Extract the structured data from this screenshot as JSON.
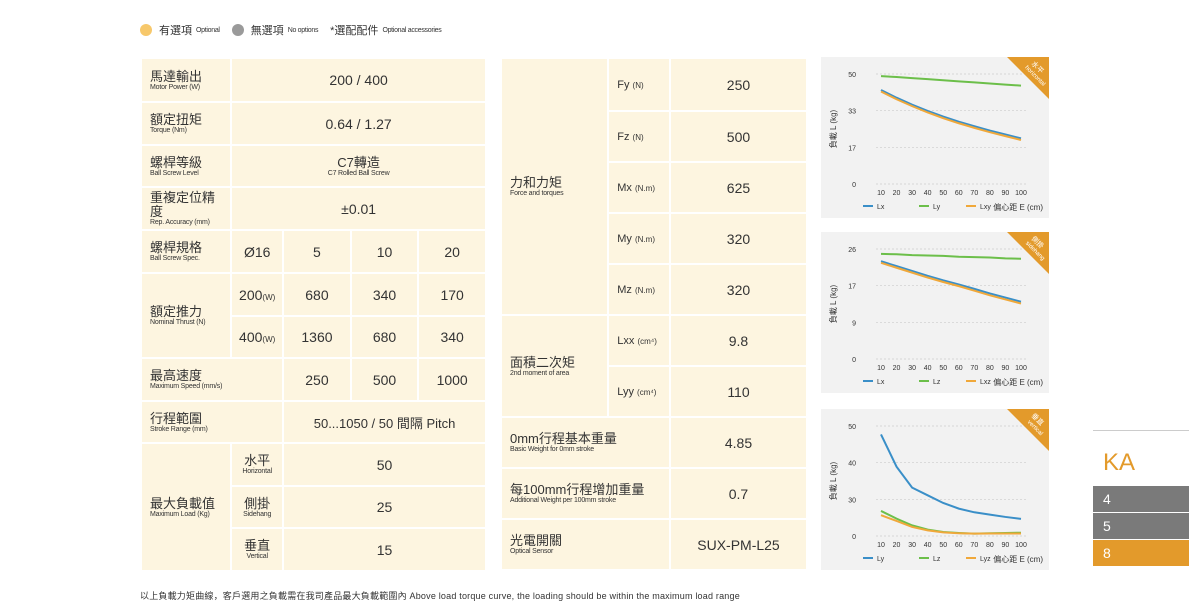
{
  "legend": {
    "optional_zh": "有選項",
    "optional_en": "Optional",
    "none_zh": "無選項",
    "none_en": "No options",
    "acc_zh": "*選配配件",
    "acc_en": "Optional accessories",
    "optional_color": "#f7c86b",
    "none_color": "#9a9a9a"
  },
  "left_table": {
    "motor": {
      "zh": "馬達輸出",
      "en": "Motor Power (W)",
      "value": "200 / 400"
    },
    "torque": {
      "zh": "額定扭矩",
      "en": "Torque (Nm)",
      "value": "0.64 / 1.27"
    },
    "level": {
      "zh": "螺桿等級",
      "en": "Ball Screw Level",
      "value_zh": "C7轉造",
      "value_en": "C7 Rolled Ball Screw"
    },
    "rep": {
      "zh": "重複定位精度",
      "en": "Rep. Accuracy (mm)",
      "value": "±0.01"
    },
    "spec": {
      "zh": "螺桿規格",
      "en": "Ball Screw Spec.",
      "dia": "Ø16",
      "leads": [
        "5",
        "10",
        "20"
      ]
    },
    "thrust": {
      "zh": "額定推力",
      "en": "Nominal Thrust (N)",
      "rows": [
        {
          "w": "200",
          "unit": "(W)",
          "values": [
            "680",
            "340",
            "170"
          ]
        },
        {
          "w": "400",
          "unit": "(W)",
          "values": [
            "1360",
            "680",
            "340"
          ]
        }
      ]
    },
    "speed": {
      "zh": "最高速度",
      "en": "Maximum Speed (mm/s)",
      "values": [
        "250",
        "500",
        "1000"
      ]
    },
    "stroke": {
      "zh": "行程範圍",
      "en": "Stroke Range (mm)",
      "value": "50...1050 / 50 間隔 Pitch"
    },
    "load": {
      "zh": "最大負載值",
      "en": "Maximum Load (Kg)",
      "rows": [
        {
          "zh": "水平",
          "en": "Horizontal",
          "value": "50"
        },
        {
          "zh": "側掛",
          "en": "Sidehang",
          "value": "25"
        },
        {
          "zh": "垂直",
          "en": "Vertical",
          "value": "15"
        }
      ]
    }
  },
  "mid_table": {
    "force": {
      "zh": "力和力矩",
      "en": "Force and torques",
      "rows": [
        {
          "sym": "Fy",
          "unit": "(N)",
          "value": "250"
        },
        {
          "sym": "Fz",
          "unit": "(N)",
          "value": "500"
        },
        {
          "sym": "Mx",
          "unit": "(N.m)",
          "value": "625"
        },
        {
          "sym": "My",
          "unit": "(N.m)",
          "value": "320"
        },
        {
          "sym": "Mz",
          "unit": "(N.m)",
          "value": "320"
        }
      ]
    },
    "area": {
      "zh": "面積二次矩",
      "en": "2nd moment of area",
      "rows": [
        {
          "sym": "Lxx",
          "unit": "(cm⁴)",
          "value": "9.8"
        },
        {
          "sym": "Lyy",
          "unit": "(cm⁴)",
          "value": "110"
        }
      ]
    },
    "weight": {
      "zh": "0mm行程基本重量",
      "en": "Basic Weight for 0mm stroke",
      "value": "4.85"
    },
    "add": {
      "zh": "每100mm行程增加重量",
      "en": "Additional Weight per 100mm stroke",
      "value": "0.7"
    },
    "sensor": {
      "zh": "光電開關",
      "en": "Optical Sensor",
      "value": "SUX-PM-L25"
    }
  },
  "chart_data": [
    {
      "type": "line",
      "tag_zh": "水平",
      "tag_en": "horizontal",
      "ylabel": "負載 L (kg)",
      "xlabel": "偏心距 E (cm)",
      "x": [
        10,
        20,
        30,
        40,
        50,
        60,
        70,
        80,
        90,
        100
      ],
      "yticks": [
        0,
        17,
        33,
        50
      ],
      "series": [
        {
          "name": "Lx",
          "color": "#3a8fc8",
          "values": [
            42.6,
            39,
            35.8,
            32.9,
            30.4,
            28.2,
            26.2,
            24.3,
            22.6,
            20.9
          ]
        },
        {
          "name": "Ly",
          "color": "#6cbf4a",
          "values": [
            49,
            48.6,
            48.1,
            47.6,
            47.1,
            46.6,
            46.1,
            45.6,
            45.1,
            44.6
          ]
        },
        {
          "name": "Lxy",
          "color": "#f0a83a",
          "values": [
            41.9,
            38.3,
            35.1,
            32.2,
            29.7,
            27.5,
            25.5,
            23.6,
            21.9,
            20.2
          ]
        }
      ]
    },
    {
      "type": "line",
      "tag_zh": "側掛",
      "tag_en": "sidehang",
      "ylabel": "負載 L (kg)",
      "xlabel": "偏心距 E (cm)",
      "x": [
        10,
        20,
        30,
        40,
        50,
        60,
        70,
        80,
        90,
        100
      ],
      "yticks": [
        0,
        9,
        17,
        26
      ],
      "series": [
        {
          "name": "Lx",
          "color": "#3a8fc8",
          "values": [
            23,
            21.8,
            20.6,
            19.4,
            18.3,
            17.3,
            16.3,
            15.3,
            14.4,
            13.5
          ]
        },
        {
          "name": "Lz",
          "color": "#6cbf4a",
          "values": [
            24.8,
            24.7,
            24.5,
            24.4,
            24.3,
            24.1,
            24,
            23.9,
            23.7,
            23.6
          ]
        },
        {
          "name": "Lxz",
          "color": "#f0a83a",
          "values": [
            22.6,
            21.4,
            20.2,
            19,
            17.9,
            16.9,
            15.9,
            14.9,
            14,
            13.1
          ]
        }
      ]
    },
    {
      "type": "line",
      "tag_zh": "垂直",
      "tag_en": "vertical",
      "ylabel": "負載 L (kg)",
      "xlabel": "偏心距 E (cm)",
      "x": [
        10,
        20,
        30,
        40,
        50,
        60,
        70,
        80,
        90,
        100
      ],
      "yticks": [
        0,
        30,
        40,
        50
      ],
      "series": [
        {
          "name": "Ly",
          "color": "#3a8fc8",
          "values": [
            47.7,
            38.9,
            33.2,
            31.1,
            27,
            22.4,
            19.4,
            17.5,
            15.6,
            14
          ]
        },
        {
          "name": "Lz",
          "color": "#6cbf4a",
          "values": [
            20.5,
            14.2,
            8.7,
            5.2,
            3.3,
            2.5,
            1.9,
            2.2,
            2.5,
            2.7
          ]
        },
        {
          "name": "Lyz",
          "color": "#f0a83a",
          "values": [
            17,
            12.3,
            7.4,
            4.6,
            3,
            2.2,
            1.9,
            2,
            2,
            2
          ]
        }
      ]
    }
  ],
  "side_tabs": {
    "title": "KA",
    "items": [
      "4",
      "5",
      "8"
    ],
    "accent": "#e39a2b"
  },
  "footer": "以上負載力矩曲線，客戶選用之負載需在我司產品最大負載範圍內 Above load torque curve, the loading should be within the maximum load range"
}
